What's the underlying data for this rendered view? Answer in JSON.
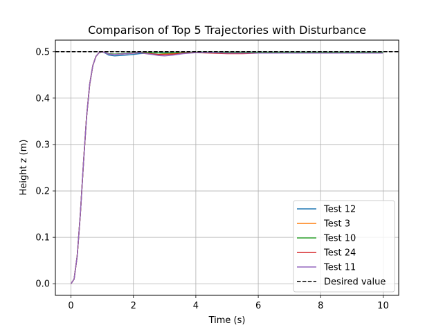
{
  "chart_data": {
    "type": "line",
    "title": "Comparison of Top 5 Trajectories with Disturbance",
    "xlabel": "Time (s)",
    "ylabel": "Height z (m)",
    "xlim": [
      -0.5,
      10.5
    ],
    "ylim": [
      -0.025,
      0.525
    ],
    "xticks": [
      0,
      2,
      4,
      6,
      8,
      10
    ],
    "yticks": [
      0.0,
      0.1,
      0.2,
      0.3,
      0.4,
      0.5
    ],
    "xtick_labels": [
      "0",
      "2",
      "4",
      "6",
      "8",
      "10"
    ],
    "ytick_labels": [
      "0.0",
      "0.1",
      "0.2",
      "0.3",
      "0.4",
      "0.5"
    ],
    "grid": true,
    "legend_position": "lower-right",
    "series": [
      {
        "name": "Test 12",
        "color": "#1f77b4",
        "x": [
          0,
          0.1,
          0.2,
          0.3,
          0.4,
          0.5,
          0.6,
          0.7,
          0.8,
          0.9,
          1.0,
          1.1,
          1.2,
          1.4,
          1.6,
          1.8,
          2.0,
          2.2,
          2.5,
          3.0,
          3.5,
          4.0,
          5.0,
          6.0,
          7.0,
          8.0,
          9.0,
          10.0
        ],
        "y": [
          0.0,
          0.01,
          0.06,
          0.15,
          0.26,
          0.36,
          0.43,
          0.47,
          0.49,
          0.498,
          0.5,
          0.497,
          0.493,
          0.491,
          0.492,
          0.493,
          0.494,
          0.496,
          0.497,
          0.498,
          0.498,
          0.499,
          0.499,
          0.499,
          0.499,
          0.499,
          0.499,
          0.499
        ]
      },
      {
        "name": "Test 3",
        "color": "#ff7f0e",
        "x": [
          0,
          0.1,
          0.2,
          0.3,
          0.4,
          0.5,
          0.6,
          0.7,
          0.8,
          0.9,
          1.0,
          1.1,
          1.2,
          1.4,
          1.6,
          1.8,
          2.0,
          2.2,
          2.5,
          2.8,
          3.0,
          3.5,
          4.0,
          4.5,
          5.0,
          6.0,
          7.0,
          8.0,
          9.0,
          10.0
        ],
        "y": [
          0.0,
          0.01,
          0.06,
          0.15,
          0.26,
          0.36,
          0.43,
          0.47,
          0.49,
          0.498,
          0.5,
          0.498,
          0.495,
          0.494,
          0.495,
          0.496,
          0.497,
          0.498,
          0.495,
          0.494,
          0.495,
          0.497,
          0.499,
          0.498,
          0.497,
          0.497,
          0.498,
          0.498,
          0.498,
          0.498
        ]
      },
      {
        "name": "Test 10",
        "color": "#2ca02c",
        "x": [
          0,
          0.1,
          0.2,
          0.3,
          0.4,
          0.5,
          0.6,
          0.7,
          0.8,
          0.9,
          1.0,
          1.1,
          1.2,
          1.4,
          1.6,
          1.8,
          2.0,
          2.2,
          2.5,
          3.0,
          3.5,
          4.0,
          5.0,
          6.0,
          7.0,
          8.0,
          9.0,
          10.0
        ],
        "y": [
          0.0,
          0.01,
          0.06,
          0.15,
          0.26,
          0.36,
          0.43,
          0.47,
          0.49,
          0.498,
          0.5,
          0.498,
          0.496,
          0.495,
          0.496,
          0.497,
          0.498,
          0.499,
          0.498,
          0.497,
          0.498,
          0.499,
          0.499,
          0.499,
          0.499,
          0.499,
          0.499,
          0.499
        ]
      },
      {
        "name": "Test 24",
        "color": "#d62728",
        "x": [
          0,
          0.1,
          0.2,
          0.3,
          0.4,
          0.5,
          0.6,
          0.7,
          0.8,
          0.9,
          1.0,
          1.1,
          1.2,
          1.4,
          1.6,
          1.8,
          2.0,
          2.2,
          2.5,
          2.8,
          3.0,
          3.3,
          3.6,
          4.0,
          4.5,
          5.0,
          5.5,
          6.0,
          7.0,
          8.0,
          9.0,
          10.0
        ],
        "y": [
          0.0,
          0.01,
          0.06,
          0.15,
          0.26,
          0.36,
          0.43,
          0.47,
          0.49,
          0.498,
          0.5,
          0.498,
          0.495,
          0.494,
          0.495,
          0.496,
          0.497,
          0.498,
          0.496,
          0.494,
          0.494,
          0.495,
          0.497,
          0.498,
          0.497,
          0.496,
          0.496,
          0.497,
          0.497,
          0.497,
          0.497,
          0.497
        ]
      },
      {
        "name": "Test 11",
        "color": "#9467bd",
        "x": [
          0,
          0.1,
          0.2,
          0.3,
          0.4,
          0.5,
          0.6,
          0.7,
          0.8,
          0.9,
          1.0,
          1.1,
          1.2,
          1.4,
          1.6,
          1.8,
          2.0,
          2.2,
          2.5,
          2.8,
          3.0,
          3.3,
          3.6,
          4.0,
          4.5,
          5.0,
          5.5,
          6.0,
          7.0,
          8.0,
          9.0,
          10.0
        ],
        "y": [
          0.0,
          0.01,
          0.06,
          0.15,
          0.26,
          0.36,
          0.43,
          0.47,
          0.49,
          0.498,
          0.5,
          0.498,
          0.495,
          0.494,
          0.495,
          0.496,
          0.497,
          0.498,
          0.495,
          0.492,
          0.491,
          0.493,
          0.496,
          0.498,
          0.498,
          0.497,
          0.497,
          0.497,
          0.497,
          0.497,
          0.497,
          0.497
        ]
      }
    ],
    "reference_line": {
      "name": "Desired value",
      "y": 0.5,
      "color": "#000000",
      "style": "dashed"
    }
  }
}
